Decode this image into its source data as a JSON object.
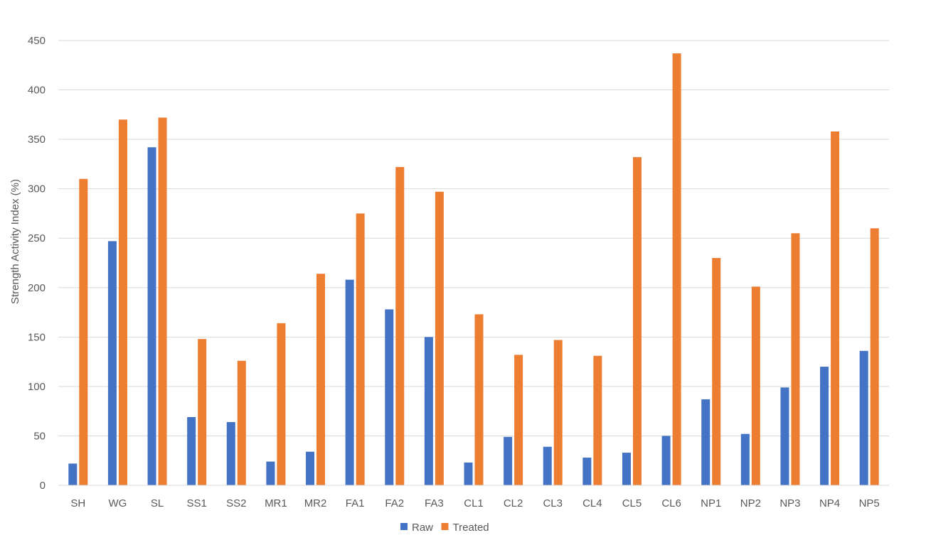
{
  "chart_data": {
    "type": "bar",
    "title": "",
    "xlabel": "",
    "ylabel": "Strength  Activity Index (%)",
    "ylim": [
      0,
      450
    ],
    "yticks": [
      0,
      50,
      100,
      150,
      200,
      250,
      300,
      350,
      400,
      450
    ],
    "grid": true,
    "legend_position": "bottom",
    "categories": [
      "SH",
      "WG",
      "SL",
      "SS1",
      "SS2",
      "MR1",
      "MR2",
      "FA1",
      "FA2",
      "FA3",
      "CL1",
      "CL2",
      "CL3",
      "CL4",
      "CL5",
      "CL6",
      "NP1",
      "NP2",
      "NP3",
      "NP4",
      "NP5"
    ],
    "series": [
      {
        "name": "Raw",
        "color": "#4472C4",
        "values": [
          22,
          247,
          342,
          69,
          64,
          24,
          34,
          208,
          178,
          150,
          23,
          49,
          39,
          28,
          33,
          50,
          87,
          52,
          99,
          120,
          136
        ]
      },
      {
        "name": "Treated",
        "color": "#ED7D31",
        "values": [
          310,
          370,
          372,
          148,
          126,
          164,
          214,
          275,
          322,
          297,
          173,
          132,
          147,
          131,
          332,
          437,
          230,
          201,
          255,
          358,
          260
        ]
      }
    ]
  }
}
